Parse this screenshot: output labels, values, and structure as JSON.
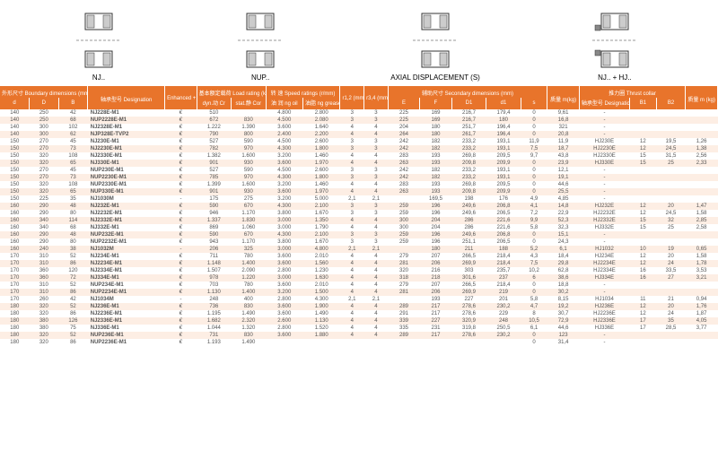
{
  "diagrams": {
    "labels": [
      "NJ..",
      "NUP..",
      "AXIAL DISPLACEMENT (S)",
      "NJ.. + HJ.."
    ]
  },
  "headers": {
    "boundary_group": "外形尺寸\nBoundary dimensions\n(mm)",
    "d": "d",
    "D_": "D",
    "B": "B",
    "designation_group": "轴承型号\nDesignation",
    "enhanced": "Enhanced\n+",
    "load_group": "基本额定载荷\nLoad rating (kN)",
    "dyn": "dyn.动\nCr",
    "stat": "stat.静\nCor",
    "speed_group": "转 速\nSpeed ratings (r/mm)",
    "oil": "油 润\nng oil",
    "grease": "油脂\nng grease",
    "r12": "r1,2\n(mm)\n(min)",
    "r34": "r3,4\n(mm)\n(min)",
    "secondary_group": "辅助尺寸\nSecondary dimensions\n(mm)",
    "E": "E",
    "F": "F",
    "D1": "D1",
    "d1": "d1",
    "s": "s",
    "mass": "质量\nm(kg)",
    "thrust_group": "推力圈\nThrust collar",
    "tdes": "轴承型号\nDesignation",
    "B1": "B1",
    "B2": "B2",
    "tmass": "质量\nm (kg)"
  },
  "rows": [
    {
      "d": "140",
      "D": "250",
      "B": "42",
      "des": "NJ228E-M1",
      "enh": "€",
      "dyn": "510",
      "stat": "",
      "oil": "4.800",
      "grease": "2.800",
      "r12": "3",
      "r34": "3",
      "E": "225",
      "F": "169",
      "D1": "216,7",
      "d1": "179,4",
      "s": "0",
      "m": "9,61",
      "td": "-",
      "b1": "",
      "b2": "",
      "tm": ""
    },
    {
      "d": "140",
      "D": "250",
      "B": "68",
      "des": "NUP2228E-M1",
      "enh": "€",
      "dyn": "672",
      "stat": "830",
      "oil": "4.500",
      "grease": "2.080",
      "r12": "3",
      "r34": "3",
      "E": "225",
      "F": "169",
      "D1": "216,7",
      "d1": "180",
      "s": "0",
      "m": "16,8",
      "td": "-",
      "b1": "",
      "b2": "",
      "tm": ""
    },
    {
      "d": "140",
      "D": "300",
      "B": "102",
      "des": "NJ2328E-M1",
      "enh": "€",
      "dyn": "1.222",
      "stat": "1.390",
      "oil": "3.600",
      "grease": "1.640",
      "r12": "4",
      "r34": "4",
      "E": "204",
      "F": "180",
      "D1": "251,7",
      "d1": "196,4",
      "s": "0",
      "m": "321",
      "td": "-",
      "b1": "",
      "b2": "",
      "tm": ""
    },
    {
      "d": "140",
      "D": "300",
      "B": "62",
      "des": "NJP328E-TVP2",
      "enh": "€",
      "dyn": "790",
      "stat": "800",
      "oil": "2.400",
      "grease": "2.200",
      "r12": "4",
      "r34": "4",
      "E": "264",
      "F": "180",
      "D1": "261,7",
      "d1": "196,4",
      "s": "0",
      "m": "20,8",
      "td": "-",
      "b1": "",
      "b2": "",
      "tm": ""
    },
    {
      "d": "150",
      "D": "270",
      "B": "45",
      "des": "NJ230E-M1",
      "enh": "€",
      "dyn": "527",
      "stat": "590",
      "oil": "4.500",
      "grease": "2.600",
      "r12": "3",
      "r34": "3",
      "E": "242",
      "F": "182",
      "D1": "233,2",
      "d1": "193,1",
      "s": "11,9",
      "m": "11,9",
      "td": "HJ230E",
      "b1": "12",
      "b2": "19,5",
      "tm": "1,26"
    },
    {
      "d": "150",
      "D": "270",
      "B": "73",
      "des": "NJ2230E-M1",
      "enh": "€",
      "dyn": "782",
      "stat": "970",
      "oil": "4.300",
      "grease": "1.800",
      "r12": "3",
      "r34": "3",
      "E": "242",
      "F": "182",
      "D1": "233,2",
      "d1": "193,1",
      "s": "7,5",
      "m": "18,7",
      "td": "HJ2230E",
      "b1": "12",
      "b2": "24,5",
      "tm": "1,38"
    },
    {
      "d": "150",
      "D": "320",
      "B": "108",
      "des": "NJ2330E-M1",
      "enh": "€",
      "dyn": "1.382",
      "stat": "1.600",
      "oil": "3.200",
      "grease": "1.460",
      "r12": "4",
      "r34": "4",
      "E": "283",
      "F": "193",
      "D1": "269,8",
      "d1": "209,5",
      "s": "9,7",
      "m": "43,8",
      "td": "HJ2330E",
      "b1": "15",
      "b2": "31,5",
      "tm": "2,56"
    },
    {
      "d": "150",
      "D": "320",
      "B": "65",
      "des": "NJ330E-M1",
      "enh": "€",
      "dyn": "901",
      "stat": "930",
      "oil": "3.600",
      "grease": "1.970",
      "r12": "4",
      "r34": "4",
      "E": "263",
      "F": "193",
      "D1": "209,8",
      "d1": "209,9",
      "s": "0",
      "m": "23,9",
      "td": "HJ330E",
      "b1": "15",
      "b2": "25",
      "tm": "2,33"
    },
    {
      "d": "150",
      "D": "270",
      "B": "45",
      "des": "NUP230E-M1",
      "enh": "€",
      "dyn": "527",
      "stat": "590",
      "oil": "4.500",
      "grease": "2.600",
      "r12": "3",
      "r34": "3",
      "E": "242",
      "F": "182",
      "D1": "233,2",
      "d1": "193,1",
      "s": "0",
      "m": "12,1",
      "td": "-",
      "b1": "",
      "b2": "",
      "tm": ""
    },
    {
      "d": "150",
      "D": "270",
      "B": "73",
      "des": "NUP2230E-M1",
      "enh": "€",
      "dyn": "785",
      "stat": "970",
      "oil": "4.300",
      "grease": "1.800",
      "r12": "3",
      "r34": "3",
      "E": "242",
      "F": "182",
      "D1": "233,2",
      "d1": "193,1",
      "s": "0",
      "m": "19,1",
      "td": "-",
      "b1": "",
      "b2": "",
      "tm": ""
    },
    {
      "d": "150",
      "D": "320",
      "B": "108",
      "des": "NUP2330E-M1",
      "enh": "€",
      "dyn": "1.399",
      "stat": "1.600",
      "oil": "3.200",
      "grease": "1.460",
      "r12": "4",
      "r34": "4",
      "E": "283",
      "F": "193",
      "D1": "269,8",
      "d1": "209,5",
      "s": "0",
      "m": "44,6",
      "td": "-",
      "b1": "",
      "b2": "",
      "tm": ""
    },
    {
      "d": "150",
      "D": "320",
      "B": "65",
      "des": "NUP330E-M1",
      "enh": "€",
      "dyn": "901",
      "stat": "930",
      "oil": "3.600",
      "grease": "1.970",
      "r12": "4",
      "r34": "4",
      "E": "263",
      "F": "193",
      "D1": "209,8",
      "d1": "209,9",
      "s": "0",
      "m": "25,5",
      "td": "-",
      "b1": "",
      "b2": "",
      "tm": ""
    },
    {
      "d": "150",
      "D": "225",
      "B": "35",
      "des": "NJ1030M",
      "enh": "-",
      "dyn": "175",
      "stat": "275",
      "oil": "3.200",
      "grease": "5.000",
      "r12": "2,1",
      "r34": "2,1",
      "E": "",
      "F": "169,5",
      "D1": "198",
      "d1": "176",
      "s": "4,9",
      "m": "4,85",
      "td": "-",
      "b1": "",
      "b2": "",
      "tm": ""
    },
    {
      "d": "160",
      "D": "290",
      "B": "48",
      "des": "NJ232E-M1",
      "enh": "€",
      "dyn": "590",
      "stat": "670",
      "oil": "4.300",
      "grease": "2.100",
      "r12": "3",
      "r34": "3",
      "E": "259",
      "F": "196",
      "D1": "249,6",
      "d1": "206,8",
      "s": "4,1",
      "m": "14,8",
      "td": "HJ232E",
      "b1": "12",
      "b2": "20",
      "tm": "1,47"
    },
    {
      "d": "160",
      "D": "290",
      "B": "80",
      "des": "NJ2232E-M1",
      "enh": "€",
      "dyn": "946",
      "stat": "1.170",
      "oil": "3.800",
      "grease": "1.670",
      "r12": "3",
      "r34": "3",
      "E": "259",
      "F": "196",
      "D1": "249,6",
      "d1": "206,5",
      "s": "7,2",
      "m": "22,9",
      "td": "HJ2232E",
      "b1": "12",
      "b2": "24,5",
      "tm": "1,58"
    },
    {
      "d": "160",
      "D": "340",
      "B": "114",
      "des": "NJ2332E-M1",
      "enh": "€",
      "dyn": "1.337",
      "stat": "1.830",
      "oil": "3.000",
      "grease": "1.350",
      "r12": "4",
      "r34": "4",
      "E": "300",
      "F": "204",
      "D1": "286",
      "d1": "221,6",
      "s": "9,9",
      "m": "52,3",
      "td": "HJ2332E",
      "b1": "15",
      "b2": "32",
      "tm": "2,85"
    },
    {
      "d": "160",
      "D": "340",
      "B": "68",
      "des": "NJ332E-M1",
      "enh": "€",
      "dyn": "869",
      "stat": "1.060",
      "oil": "3.000",
      "grease": "1.790",
      "r12": "4",
      "r34": "4",
      "E": "300",
      "F": "204",
      "D1": "286",
      "d1": "221,6",
      "s": "5,8",
      "m": "32,3",
      "td": "HJ332E",
      "b1": "15",
      "b2": "25",
      "tm": "2,58"
    },
    {
      "d": "160",
      "D": "290",
      "B": "48",
      "des": "NUP232E-M1",
      "enh": "€",
      "dyn": "590",
      "stat": "670",
      "oil": "4.300",
      "grease": "2.100",
      "r12": "3",
      "r34": "3",
      "E": "259",
      "F": "196",
      "D1": "249,6",
      "d1": "206,8",
      "s": "0",
      "m": "15,1",
      "td": "-",
      "b1": "",
      "b2": "",
      "tm": ""
    },
    {
      "d": "160",
      "D": "290",
      "B": "80",
      "des": "NUP2232E-M1",
      "enh": "€",
      "dyn": "943",
      "stat": "1.170",
      "oil": "3.800",
      "grease": "1.670",
      "r12": "3",
      "r34": "3",
      "E": "259",
      "F": "196",
      "D1": "251,1",
      "d1": "206,5",
      "s": "0",
      "m": "24,3",
      "td": "-",
      "b1": "",
      "b2": "",
      "tm": ""
    },
    {
      "d": "160",
      "D": "240",
      "B": "38",
      "des": "NJ1032M",
      "enh": "-",
      "dyn": "206",
      "stat": "325",
      "oil": "3.000",
      "grease": "4.800",
      "r12": "2,1",
      "r34": "2,1",
      "E": "",
      "F": "180",
      "D1": "211",
      "d1": "188",
      "s": "5,2",
      "m": "6,1",
      "td": "HJ1032",
      "b1": "10",
      "b2": "19",
      "tm": "0,65"
    },
    {
      "d": "170",
      "D": "310",
      "B": "52",
      "des": "NJ234E-M1",
      "enh": "€",
      "dyn": "711",
      "stat": "780",
      "oil": "3.600",
      "grease": "2.010",
      "r12": "4",
      "r34": "4",
      "E": "279",
      "F": "207",
      "D1": "266,5",
      "d1": "218,4",
      "s": "4,3",
      "m": "18,4",
      "td": "HJ234E",
      "b1": "12",
      "b2": "20",
      "tm": "1,58"
    },
    {
      "d": "170",
      "D": "310",
      "B": "86",
      "des": "NJ2234E-M1",
      "enh": "€",
      "dyn": "1.148",
      "stat": "1.400",
      "oil": "3.600",
      "grease": "1.560",
      "r12": "4",
      "r34": "4",
      "E": "281",
      "F": "206",
      "D1": "269,9",
      "d1": "218,4",
      "s": "7,5",
      "m": "29,8",
      "td": "HJ2234E",
      "b1": "12",
      "b2": "24",
      "tm": "1,78"
    },
    {
      "d": "170",
      "D": "360",
      "B": "120",
      "des": "NJ2334E-M1",
      "enh": "€",
      "dyn": "1.507",
      "stat": "2.090",
      "oil": "2.800",
      "grease": "1.230",
      "r12": "4",
      "r34": "4",
      "E": "320",
      "F": "216",
      "D1": "303",
      "d1": "235,7",
      "s": "10,2",
      "m": "62,8",
      "td": "HJ2334E",
      "b1": "16",
      "b2": "33,5",
      "tm": "3,53"
    },
    {
      "d": "170",
      "D": "360",
      "B": "72",
      "des": "NJ334E-M1",
      "enh": "€",
      "dyn": "978",
      "stat": "1.220",
      "oil": "3.000",
      "grease": "1.630",
      "r12": "4",
      "r34": "4",
      "E": "318",
      "F": "218",
      "D1": "301,6",
      "d1": "237",
      "s": "6",
      "m": "38,6",
      "td": "HJ334E",
      "b1": "16",
      "b2": "27",
      "tm": "3,21"
    },
    {
      "d": "170",
      "D": "310",
      "B": "52",
      "des": "NUP234E-M1",
      "enh": "€",
      "dyn": "703",
      "stat": "780",
      "oil": "3.600",
      "grease": "2.010",
      "r12": "4",
      "r34": "4",
      "E": "279",
      "F": "207",
      "D1": "266,5",
      "d1": "218,4",
      "s": "0",
      "m": "18,8",
      "td": "-",
      "b1": "",
      "b2": "",
      "tm": ""
    },
    {
      "d": "170",
      "D": "310",
      "B": "86",
      "des": "NUP2234E-M1",
      "enh": "€",
      "dyn": "1.130",
      "stat": "1.400",
      "oil": "3.200",
      "grease": "1.500",
      "r12": "4",
      "r34": "4",
      "E": "281",
      "F": "206",
      "D1": "269,9",
      "d1": "219",
      "s": "0",
      "m": "30,2",
      "td": "-",
      "b1": "",
      "b2": "",
      "tm": ""
    },
    {
      "d": "170",
      "D": "260",
      "B": "42",
      "des": "NJ1034M",
      "enh": "-",
      "dyn": "248",
      "stat": "400",
      "oil": "2.800",
      "grease": "4.300",
      "r12": "2,1",
      "r34": "2,1",
      "E": "",
      "F": "193",
      "D1": "227",
      "d1": "201",
      "s": "5,8",
      "m": "8,15",
      "td": "HJ1034",
      "b1": "11",
      "b2": "21",
      "tm": "0,94"
    },
    {
      "d": "180",
      "D": "320",
      "B": "52",
      "des": "NJ236E-M1",
      "enh": "€",
      "dyn": "736",
      "stat": "830",
      "oil": "3.600",
      "grease": "1.900",
      "r12": "4",
      "r34": "4",
      "E": "289",
      "F": "217",
      "D1": "278,6",
      "d1": "230,2",
      "s": "4,7",
      "m": "19,2",
      "td": "HJ236E",
      "b1": "12",
      "b2": "20",
      "tm": "1,76"
    },
    {
      "d": "180",
      "D": "320",
      "B": "86",
      "des": "NJ2236E-M1",
      "enh": "€",
      "dyn": "1.195",
      "stat": "1.490",
      "oil": "3.600",
      "grease": "1.490",
      "r12": "4",
      "r34": "4",
      "E": "291",
      "F": "217",
      "D1": "278,6",
      "d1": "229",
      "s": "8",
      "m": "30,7",
      "td": "HJ2236E",
      "b1": "12",
      "b2": "24",
      "tm": "1,87"
    },
    {
      "d": "180",
      "D": "380",
      "B": "126",
      "des": "NJ2336E-M1",
      "enh": "€",
      "dyn": "1.682",
      "stat": "2.320",
      "oil": "2.600",
      "grease": "1.130",
      "r12": "4",
      "r34": "4",
      "E": "339",
      "F": "227",
      "D1": "320,9",
      "d1": "248",
      "s": "10,5",
      "m": "72,9",
      "td": "HJ2336E",
      "b1": "17",
      "b2": "35",
      "tm": "4,05"
    },
    {
      "d": "180",
      "D": "380",
      "B": "75",
      "des": "NJ336E-M1",
      "enh": "€",
      "dyn": "1.044",
      "stat": "1.320",
      "oil": "2.800",
      "grease": "1.520",
      "r12": "4",
      "r34": "4",
      "E": "335",
      "F": "231",
      "D1": "319,8",
      "d1": "250,5",
      "s": "6,1",
      "m": "44,6",
      "td": "HJ336E",
      "b1": "17",
      "b2": "28,5",
      "tm": "3,77"
    },
    {
      "d": "180",
      "D": "320",
      "B": "52",
      "des": "NUP236E-M1",
      "enh": "€",
      "dyn": "731",
      "stat": "830",
      "oil": "3.600",
      "grease": "1.880",
      "r12": "4",
      "r34": "4",
      "E": "289",
      "F": "217",
      "D1": "278,6",
      "d1": "230,2",
      "s": "0",
      "m": "123",
      "td": "-",
      "b1": "",
      "b2": "",
      "tm": ""
    },
    {
      "d": "180",
      "D": "320",
      "B": "86",
      "des": "NUP2236E-M1",
      "enh": "€",
      "dyn": "1.193",
      "stat": "1.490",
      "oil": "",
      "grease": "",
      "r12": "",
      "r34": "",
      "E": "",
      "F": "",
      "D1": "",
      "d1": "",
      "s": "0",
      "m": "31,4",
      "td": "-",
      "b1": "",
      "b2": "",
      "tm": ""
    }
  ],
  "colors": {
    "header_bg": "#e8742b",
    "even_row": "#fdeee4"
  }
}
